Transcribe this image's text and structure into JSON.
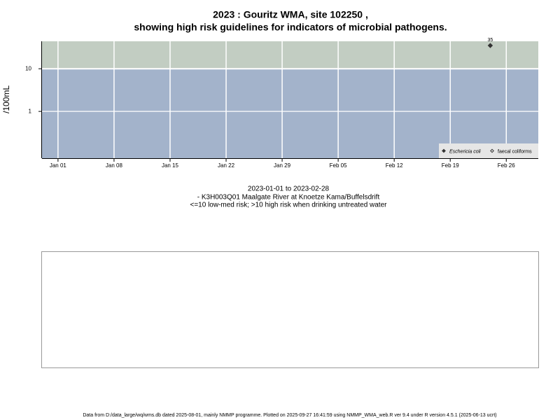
{
  "chart_data": {
    "type": "scatter",
    "title": [
      "2023 : Gouritz WMA, site 102250 ,",
      "showing high risk guidelines for indicators of microbial pathogens."
    ],
    "y_label": "/100mL",
    "subtitle": [
      "2023-01-01 to 2023-02-28",
      "- K3H003Q01 Maalgate River at Knoetze Kama/Buffelsdrift",
      "<=10 low-med risk; >10 high risk when drinking untreated water"
    ],
    "footer": "Data from D:/data_large/wq/wms.db dated 2025-08-01, mainly NMMP programme. Plotted on 2025-09-27 16:41:59 using NMMP_WMA_web.R ver 9.4 under R version 4.5.1 (2025-06-13 ucrt)",
    "x": [
      "2023-02-24"
    ],
    "series": [
      {
        "name": "Eschericia coli",
        "color": "#333333",
        "marker": "filled-diamond",
        "values": [
          35
        ],
        "value_labels": [
          "35"
        ]
      },
      {
        "name": "faecal coliforms",
        "color": "#333333",
        "marker": "open-diamond",
        "values": [
          null
        ]
      }
    ],
    "xlim": [
      "2022-12-30",
      "2023-03-02"
    ],
    "xticks": [
      {
        "value": "2023-01-01",
        "label": "Jan 01"
      },
      {
        "value": "2023-01-08",
        "label": "Jan 08"
      },
      {
        "value": "2023-01-15",
        "label": "Jan 15"
      },
      {
        "value": "2023-01-22",
        "label": "Jan 22"
      },
      {
        "value": "2023-01-29",
        "label": "Jan 29"
      },
      {
        "value": "2023-02-05",
        "label": "Feb 05"
      },
      {
        "value": "2023-02-12",
        "label": "Feb 12"
      },
      {
        "value": "2023-02-19",
        "label": "Feb 19"
      },
      {
        "value": "2023-02-26",
        "label": "Feb 26"
      }
    ],
    "ylim": [
      0.08,
      44
    ],
    "yticks": [
      1,
      10
    ],
    "log_y": true,
    "grid": true,
    "threshold": 10,
    "below_color": "#a3b3cb",
    "above_color": "#c2cdc2",
    "legend": "bottom-right"
  }
}
